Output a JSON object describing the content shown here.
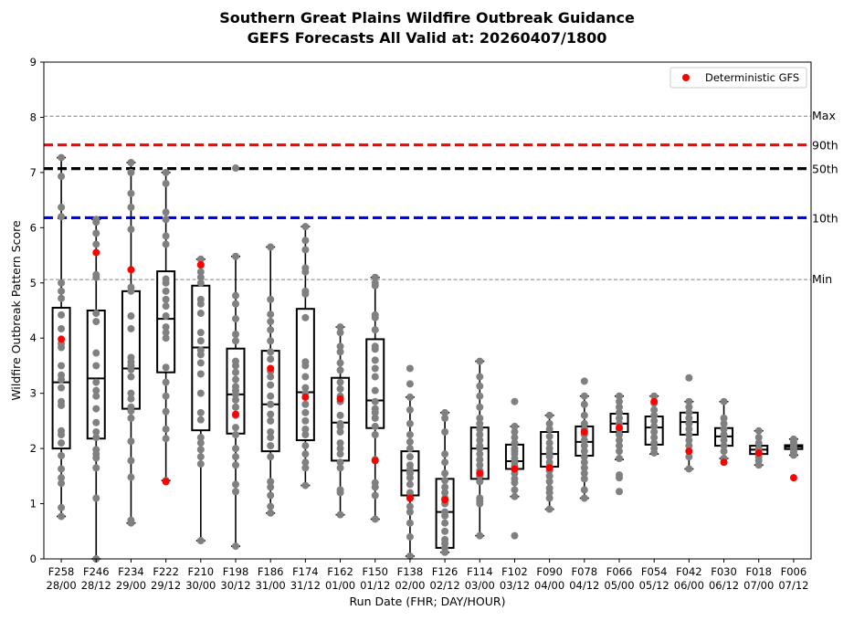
{
  "chart_data": {
    "type": "box",
    "title": [
      "Southern Great Plains Wildfire Outbreak Guidance",
      "GEFS Forecasts All Valid at: 20260407/1800"
    ],
    "xlabel": "Run Date (FHR; DAY/HOUR)",
    "ylabel": "Wildfire Outbreak Pattern Score",
    "ylim": [
      0,
      9
    ],
    "yticks": [
      "0",
      "1",
      "2",
      "3",
      "4",
      "5",
      "6",
      "7",
      "8",
      "9"
    ],
    "categories": [
      [
        "F258",
        "28/00"
      ],
      [
        "F246",
        "28/12"
      ],
      [
        "F234",
        "29/00"
      ],
      [
        "F222",
        "29/12"
      ],
      [
        "F210",
        "30/00"
      ],
      [
        "F198",
        "30/12"
      ],
      [
        "F186",
        "31/00"
      ],
      [
        "F174",
        "31/12"
      ],
      [
        "F162",
        "01/00"
      ],
      [
        "F150",
        "01/12"
      ],
      [
        "F138",
        "02/00"
      ],
      [
        "F126",
        "02/12"
      ],
      [
        "F114",
        "03/00"
      ],
      [
        "F102",
        "03/12"
      ],
      [
        "F090",
        "04/00"
      ],
      [
        "F078",
        "04/12"
      ],
      [
        "F066",
        "05/00"
      ],
      [
        "F054",
        "05/12"
      ],
      [
        "F042",
        "06/00"
      ],
      [
        "F030",
        "06/12"
      ],
      [
        "F018",
        "07/00"
      ],
      [
        "F006",
        "07/12"
      ]
    ],
    "reference_lines": [
      {
        "label": "Max",
        "value": 8.02,
        "color": "#808080",
        "style": "dashed-thin"
      },
      {
        "label": "90th",
        "value": 7.5,
        "color": "#ff0000",
        "style": "dashed-thick"
      },
      {
        "label": "50th",
        "value": 7.07,
        "color": "#000000",
        "style": "dashed-thick"
      },
      {
        "label": "10th",
        "value": 6.18,
        "color": "#0000ff",
        "style": "dashed-thick"
      },
      {
        "label": "Min",
        "value": 5.06,
        "color": "#808080",
        "style": "dashed-thin"
      }
    ],
    "boxes": [
      {
        "whisker_low": 0.77,
        "q1": 2.0,
        "median": 3.2,
        "q3": 4.55,
        "whisker_high": 7.27
      },
      {
        "whisker_low": 0.0,
        "q1": 2.18,
        "median": 3.27,
        "q3": 4.5,
        "whisker_high": 6.15
      },
      {
        "whisker_low": 0.65,
        "q1": 2.72,
        "median": 3.45,
        "q3": 4.85,
        "whisker_high": 7.18
      },
      {
        "whisker_low": 1.42,
        "q1": 3.38,
        "median": 4.35,
        "q3": 5.21,
        "whisker_high": 7.0
      },
      {
        "whisker_low": 0.33,
        "q1": 2.33,
        "median": 3.83,
        "q3": 4.95,
        "whisker_high": 5.43
      },
      {
        "whisker_low": 0.23,
        "q1": 2.27,
        "median": 2.98,
        "q3": 3.81,
        "whisker_high": 5.48
      },
      {
        "whisker_low": 0.83,
        "q1": 1.95,
        "median": 2.8,
        "q3": 3.77,
        "whisker_high": 5.65
      },
      {
        "whisker_low": 1.33,
        "q1": 2.15,
        "median": 3.02,
        "q3": 4.53,
        "whisker_high": 6.02
      },
      {
        "whisker_low": 0.8,
        "q1": 1.78,
        "median": 2.47,
        "q3": 3.28,
        "whisker_high": 4.2
      },
      {
        "whisker_low": 0.72,
        "q1": 2.37,
        "median": 2.87,
        "q3": 3.98,
        "whisker_high": 5.1
      },
      {
        "whisker_low": 0.05,
        "q1": 1.15,
        "median": 1.6,
        "q3": 1.95,
        "whisker_high": 2.93
      },
      {
        "whisker_low": 0.12,
        "q1": 0.2,
        "median": 0.85,
        "q3": 1.45,
        "whisker_high": 2.65
      },
      {
        "whisker_low": 0.42,
        "q1": 1.45,
        "median": 2.0,
        "q3": 2.38,
        "whisker_high": 3.58
      },
      {
        "whisker_low": 1.13,
        "q1": 1.63,
        "median": 1.77,
        "q3": 2.07,
        "whisker_high": 2.4
      },
      {
        "whisker_low": 0.9,
        "q1": 1.67,
        "median": 1.9,
        "q3": 2.3,
        "whisker_high": 2.6
      },
      {
        "whisker_low": 1.1,
        "q1": 1.87,
        "median": 2.12,
        "q3": 2.4,
        "whisker_high": 2.95
      },
      {
        "whisker_low": 1.8,
        "q1": 2.3,
        "median": 2.45,
        "q3": 2.63,
        "whisker_high": 2.95
      },
      {
        "whisker_low": 1.9,
        "q1": 2.07,
        "median": 2.38,
        "q3": 2.58,
        "whisker_high": 2.95
      },
      {
        "whisker_low": 1.63,
        "q1": 2.25,
        "median": 2.48,
        "q3": 2.65,
        "whisker_high": 2.85
      },
      {
        "whisker_low": 1.82,
        "q1": 2.05,
        "median": 2.22,
        "q3": 2.37,
        "whisker_high": 2.85
      },
      {
        "whisker_low": 1.7,
        "q1": 1.9,
        "median": 1.98,
        "q3": 2.05,
        "whisker_high": 2.32
      },
      {
        "whisker_low": 1.88,
        "q1": 1.99,
        "median": 2.03,
        "q3": 2.06,
        "whisker_high": 2.17
      }
    ],
    "members": [
      [
        7.27,
        6.93,
        6.37,
        6.2,
        5.0,
        4.85,
        4.72,
        4.42,
        4.17,
        3.9,
        3.83,
        3.5,
        3.33,
        3.25,
        3.1,
        2.85,
        2.78,
        2.32,
        2.25,
        2.1,
        1.87,
        1.63,
        1.47,
        1.37,
        0.93,
        0.77
      ],
      [
        6.15,
        6.1,
        5.9,
        5.7,
        5.15,
        5.1,
        4.45,
        4.3,
        3.73,
        3.5,
        3.2,
        3.05,
        2.95,
        2.72,
        2.47,
        2.3,
        2.2,
        1.98,
        1.9,
        1.83,
        1.65,
        1.1,
        0.0
      ],
      [
        7.18,
        7.0,
        6.62,
        6.37,
        5.97,
        4.92,
        4.85,
        4.4,
        4.17,
        3.65,
        3.57,
        3.5,
        3.43,
        3.3,
        3.0,
        2.9,
        2.75,
        2.68,
        2.55,
        2.13,
        1.78,
        1.48,
        0.7,
        0.65
      ],
      [
        7.0,
        6.8,
        6.28,
        6.15,
        5.85,
        5.7,
        5.07,
        5.0,
        4.85,
        4.7,
        4.58,
        4.4,
        4.2,
        4.1,
        4.0,
        3.47,
        3.2,
        2.95,
        2.67,
        2.35,
        2.18,
        1.42
      ],
      [
        5.43,
        5.32,
        5.2,
        5.1,
        5.0,
        4.7,
        4.62,
        4.45,
        4.1,
        3.95,
        3.78,
        3.7,
        3.55,
        3.35,
        3.0,
        2.65,
        2.52,
        2.2,
        2.1,
        1.98,
        1.85,
        1.72,
        0.33
      ],
      [
        7.08,
        5.48,
        4.77,
        4.62,
        4.35,
        4.07,
        3.95,
        3.58,
        3.5,
        3.38,
        3.25,
        3.12,
        3.05,
        2.98,
        2.88,
        2.75,
        2.6,
        2.38,
        2.25,
        2.0,
        1.85,
        1.7,
        1.35,
        1.22,
        0.23
      ],
      [
        5.65,
        4.7,
        4.43,
        4.3,
        4.15,
        3.95,
        3.75,
        3.62,
        3.4,
        3.3,
        3.15,
        2.95,
        2.8,
        2.62,
        2.5,
        2.3,
        2.2,
        2.05,
        1.85,
        1.4,
        1.3,
        1.15,
        0.95,
        0.83
      ],
      [
        6.02,
        5.77,
        5.6,
        5.27,
        5.2,
        4.85,
        4.8,
        4.37,
        3.57,
        3.5,
        3.3,
        3.1,
        3.0,
        2.8,
        2.65,
        2.5,
        2.35,
        2.25,
        2.05,
        1.9,
        1.75,
        1.65,
        1.33
      ],
      [
        4.2,
        4.1,
        3.85,
        3.75,
        3.55,
        3.42,
        3.2,
        3.08,
        2.95,
        2.85,
        2.6,
        2.45,
        2.4,
        2.3,
        2.1,
        2.0,
        1.9,
        1.75,
        1.65,
        1.25,
        1.2,
        0.8
      ],
      [
        5.1,
        5.0,
        4.95,
        4.42,
        4.37,
        4.15,
        3.85,
        3.8,
        3.6,
        3.45,
        3.3,
        3.05,
        2.85,
        2.72,
        2.65,
        2.55,
        2.4,
        2.25,
        1.8,
        1.38,
        1.3,
        1.15,
        0.72
      ],
      [
        3.45,
        3.17,
        2.93,
        2.7,
        2.45,
        2.25,
        2.12,
        2.0,
        1.85,
        1.7,
        1.62,
        1.55,
        1.47,
        1.35,
        1.2,
        1.1,
        0.95,
        0.85,
        0.65,
        0.4,
        0.05
      ],
      [
        2.65,
        2.55,
        2.3,
        1.9,
        1.75,
        1.55,
        1.42,
        1.3,
        1.2,
        1.1,
        1.0,
        0.85,
        0.78,
        0.65,
        0.5,
        0.35,
        0.28,
        0.2,
        0.12
      ],
      [
        3.58,
        3.3,
        3.13,
        2.95,
        2.75,
        2.55,
        2.45,
        2.35,
        2.25,
        2.15,
        2.05,
        2.0,
        1.9,
        1.8,
        1.7,
        1.6,
        1.5,
        1.4,
        1.1,
        1.05,
        1.0,
        0.42
      ],
      [
        2.85,
        2.4,
        2.3,
        2.2,
        2.1,
        2.0,
        1.95,
        1.9,
        1.82,
        1.75,
        1.68,
        1.62,
        1.55,
        1.45,
        1.38,
        1.25,
        1.13,
        0.42
      ],
      [
        2.6,
        2.45,
        2.35,
        2.22,
        2.1,
        2.0,
        1.92,
        1.85,
        1.75,
        1.68,
        1.6,
        1.5,
        1.4,
        1.28,
        1.2,
        1.1,
        0.9
      ],
      [
        3.22,
        2.95,
        2.8,
        2.6,
        2.45,
        2.35,
        2.25,
        2.15,
        2.05,
        1.95,
        1.85,
        1.75,
        1.65,
        1.55,
        1.45,
        1.25,
        1.1
      ],
      [
        2.95,
        2.85,
        2.75,
        2.65,
        2.55,
        2.45,
        2.35,
        2.25,
        2.15,
        2.05,
        1.95,
        1.82,
        1.52,
        1.47,
        1.22
      ],
      [
        2.95,
        2.82,
        2.7,
        2.6,
        2.5,
        2.4,
        2.3,
        2.2,
        2.1,
        2.0,
        1.92
      ],
      [
        3.28,
        2.85,
        2.75,
        2.65,
        2.55,
        2.45,
        2.35,
        2.25,
        2.15,
        2.05,
        1.95,
        1.85,
        1.63
      ],
      [
        2.85,
        2.55,
        2.45,
        2.35,
        2.25,
        2.15,
        2.05,
        1.95,
        1.82
      ],
      [
        2.32,
        2.2,
        2.1,
        2.0,
        1.92,
        1.85,
        1.78,
        1.7
      ],
      [
        2.17,
        2.12,
        2.08,
        2.05,
        2.02,
        1.98,
        1.95,
        1.92,
        1.88
      ]
    ],
    "deterministic_gfs": [
      3.98,
      5.55,
      5.24,
      1.4,
      5.33,
      2.62,
      3.45,
      2.93,
      2.9,
      1.78,
      1.1,
      1.07,
      1.55,
      1.63,
      1.65,
      2.3,
      2.38,
      2.85,
      1.95,
      1.75,
      1.92,
      1.47
    ],
    "legend": {
      "label": "Deterministic GFS",
      "placement": "top-right",
      "marker_color": "#ff0000"
    },
    "member_color": "#808080",
    "deterministic_color": "#ff0000"
  }
}
